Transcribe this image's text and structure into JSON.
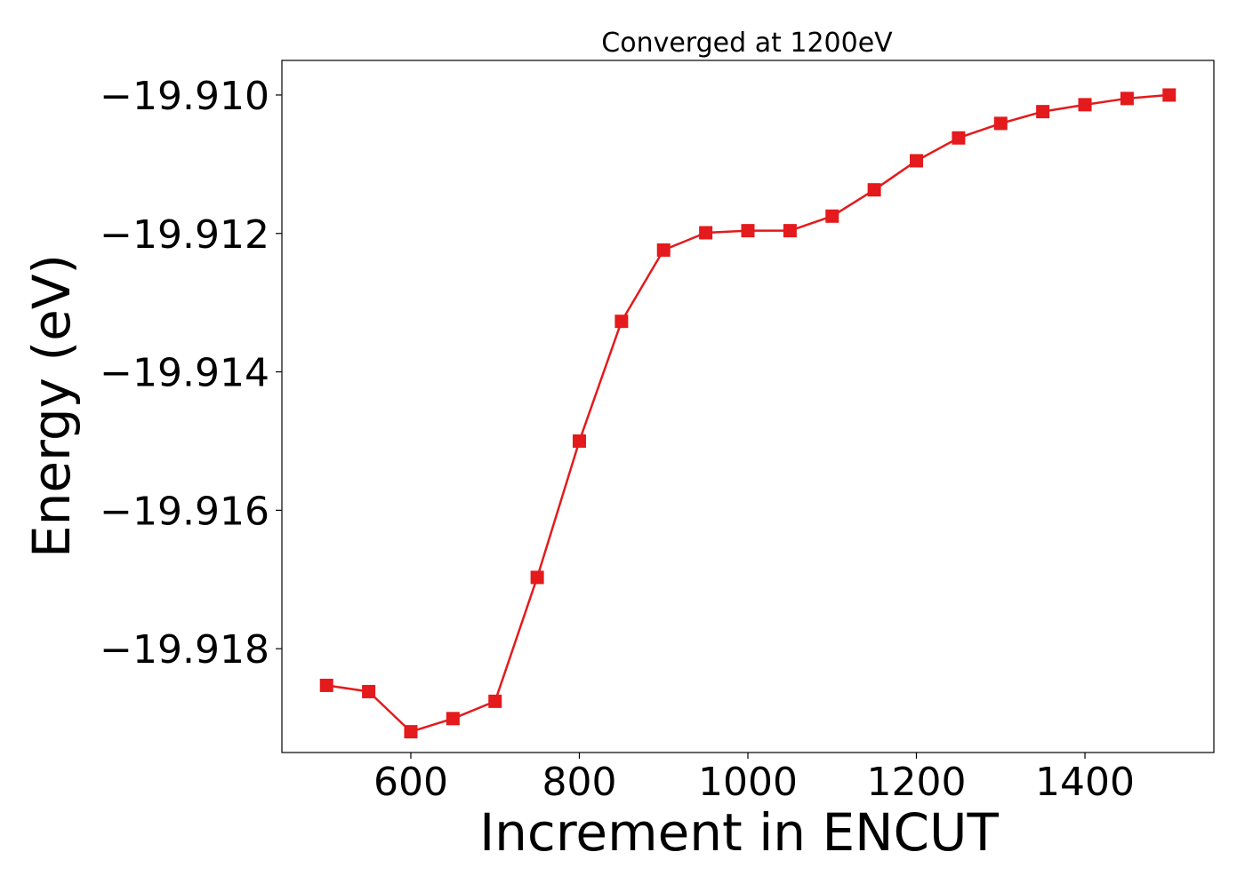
{
  "chart_data": {
    "type": "line",
    "title": "Converged at 1200eV",
    "xlabel": "Increment in ENCUT",
    "ylabel": "Energy (eV)",
    "xlim": [
      447,
      1553
    ],
    "ylim": [
      -19.9195,
      -19.9095
    ],
    "xticks": [
      600,
      800,
      1000,
      1200,
      1400
    ],
    "xtick_labels": [
      "600",
      "800",
      "1000",
      "1200",
      "1400"
    ],
    "yticks": [
      -19.918,
      -19.916,
      -19.914,
      -19.912,
      -19.91
    ],
    "ytick_labels": [
      "−19.918",
      "−19.916",
      "−19.914",
      "−19.912",
      "−19.910"
    ],
    "grid": false,
    "series": [
      {
        "color": "#e41a1c",
        "marker": "square",
        "x": [
          500,
          550,
          600,
          650,
          700,
          750,
          800,
          850,
          900,
          950,
          1000,
          1050,
          1100,
          1150,
          1200,
          1250,
          1300,
          1350,
          1400,
          1450,
          1500
        ],
        "y": [
          -19.91853,
          -19.91862,
          -19.9192,
          -19.91901,
          -19.91876,
          -19.91697,
          -19.915,
          -19.91327,
          -19.91224,
          -19.91199,
          -19.91196,
          -19.91196,
          -19.91175,
          -19.91137,
          -19.91095,
          -19.91062,
          -19.91041,
          -19.91024,
          -19.91014,
          -19.91005,
          -19.91
        ]
      }
    ]
  }
}
